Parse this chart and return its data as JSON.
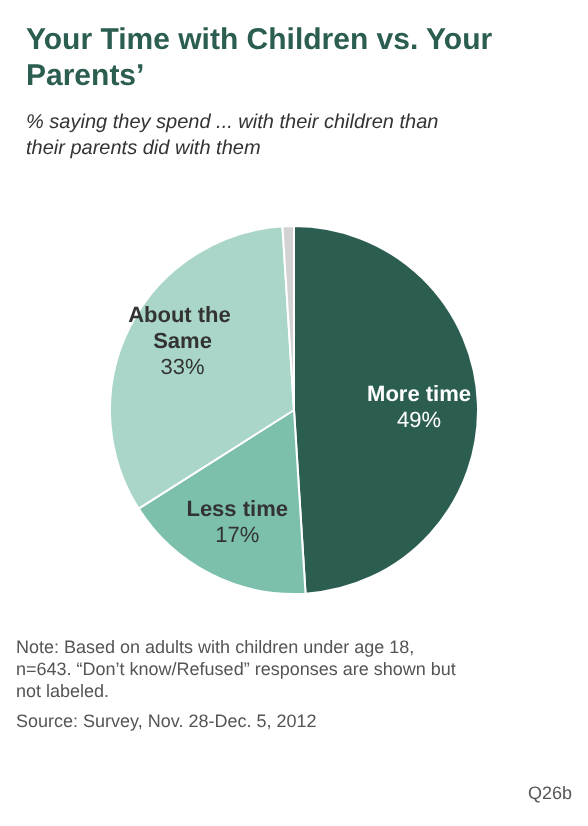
{
  "chart_data": {
    "type": "pie",
    "title": "Your Time with Children vs. Your Parents’",
    "subtitle": "% saying they spend ... with their children than their parents did with them",
    "categories": [
      "More time",
      "Less time",
      "About the Same",
      null
    ],
    "values": [
      49,
      17,
      33,
      1
    ],
    "colors": [
      "#2b5e50",
      "#7cbfad",
      "#a9d6c9",
      "#d3d3d3"
    ],
    "value_labels": [
      "49%",
      "17%",
      "33%",
      null
    ],
    "legend": false,
    "annotations": [
      "Note: Based on adults with children under age 18, n=643. “Don’t know/Refused” responses are shown but not labeled.",
      "Source: Survey, Nov. 28-Dec. 5, 2012",
      "Q26b"
    ]
  }
}
